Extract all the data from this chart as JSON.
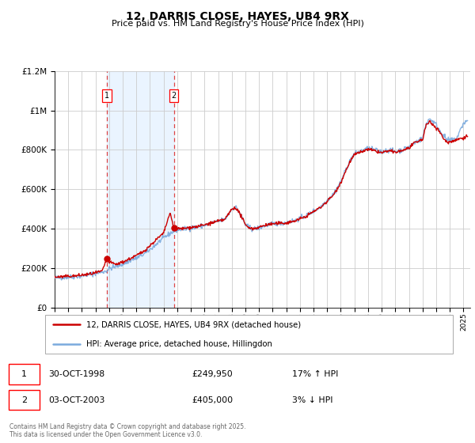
{
  "title": "12, DARRIS CLOSE, HAYES, UB4 9RX",
  "subtitle": "Price paid vs. HM Land Registry's House Price Index (HPI)",
  "ylim": [
    0,
    1200000
  ],
  "yticks": [
    0,
    200000,
    400000,
    600000,
    800000,
    1000000,
    1200000
  ],
  "ytick_labels": [
    "£0",
    "£200K",
    "£400K",
    "£600K",
    "£800K",
    "£1M",
    "£1.2M"
  ],
  "background_color": "#ffffff",
  "grid_color": "#cccccc",
  "sale1": {
    "date_year": 1998.83,
    "price": 249950,
    "label": "1",
    "date_str": "30-OCT-1998",
    "hpi_rel": "17% ↑ HPI"
  },
  "sale2": {
    "date_year": 2003.75,
    "price": 405000,
    "label": "2",
    "date_str": "03-OCT-2003",
    "hpi_rel": "3% ↓ HPI"
  },
  "vline1_x": 1998.83,
  "vline2_x": 2003.75,
  "shade_color": "#ddeeff",
  "vline_color": "#dd4444",
  "red_line_color": "#cc0000",
  "blue_line_color": "#7aaadd",
  "marker_color": "#cc0000",
  "legend_label_red": "12, DARRIS CLOSE, HAYES, UB4 9RX (detached house)",
  "legend_label_blue": "HPI: Average price, detached house, Hillingdon",
  "footer": "Contains HM Land Registry data © Crown copyright and database right 2025.\nThis data is licensed under the Open Government Licence v3.0.",
  "xmin": 1995,
  "xmax": 2025.5
}
